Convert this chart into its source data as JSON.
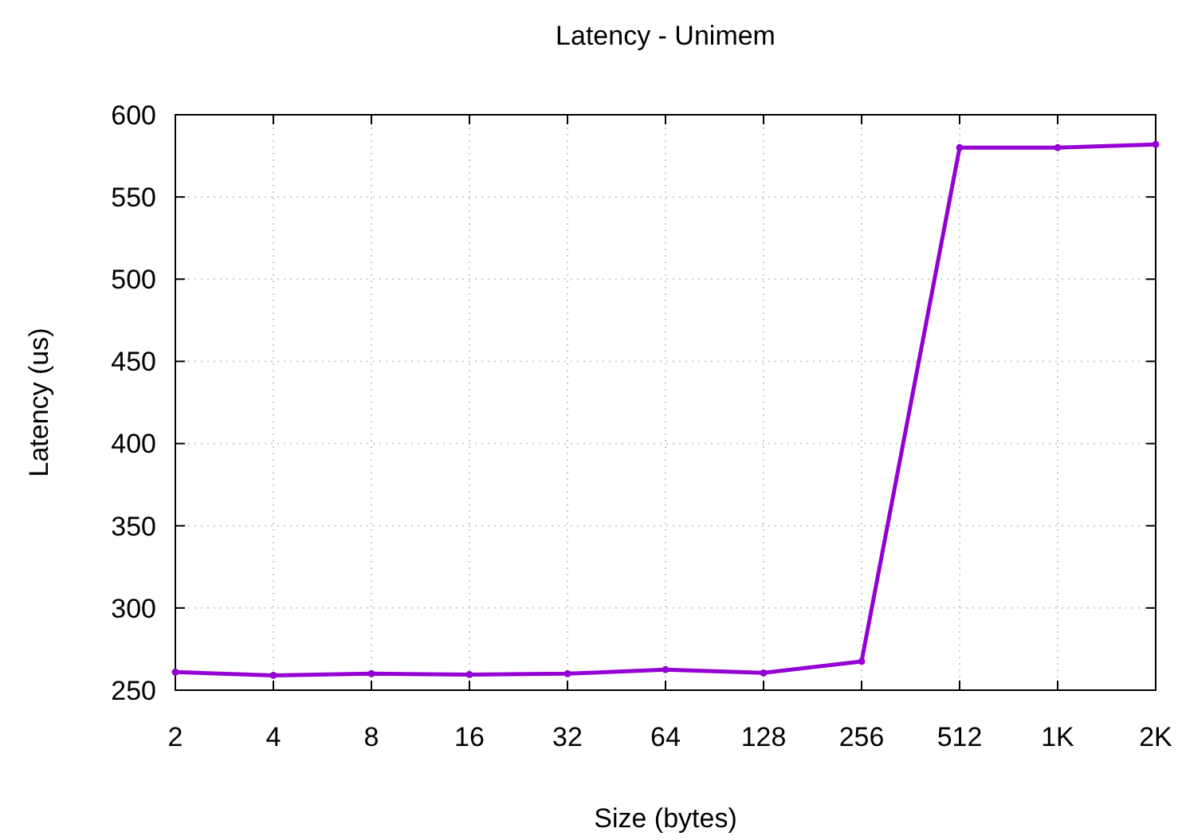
{
  "chart_data": {
    "type": "line",
    "title": "Latency - Unimem",
    "xlabel": "Size (bytes)",
    "ylabel": "Latency (us)",
    "categories": [
      "2",
      "4",
      "8",
      "16",
      "32",
      "64",
      "128",
      "256",
      "512",
      "1K",
      "2K"
    ],
    "series": [
      {
        "color": "#9400d3",
        "values": [
          261,
          259,
          260,
          259.5,
          260,
          262.5,
          260.5,
          267.5,
          580,
          580,
          582
        ]
      }
    ],
    "ylim": [
      250,
      600
    ],
    "yticks": [
      250,
      300,
      350,
      400,
      450,
      500,
      550,
      600
    ],
    "grid": true,
    "marker": "circle",
    "line_style": "solid"
  }
}
